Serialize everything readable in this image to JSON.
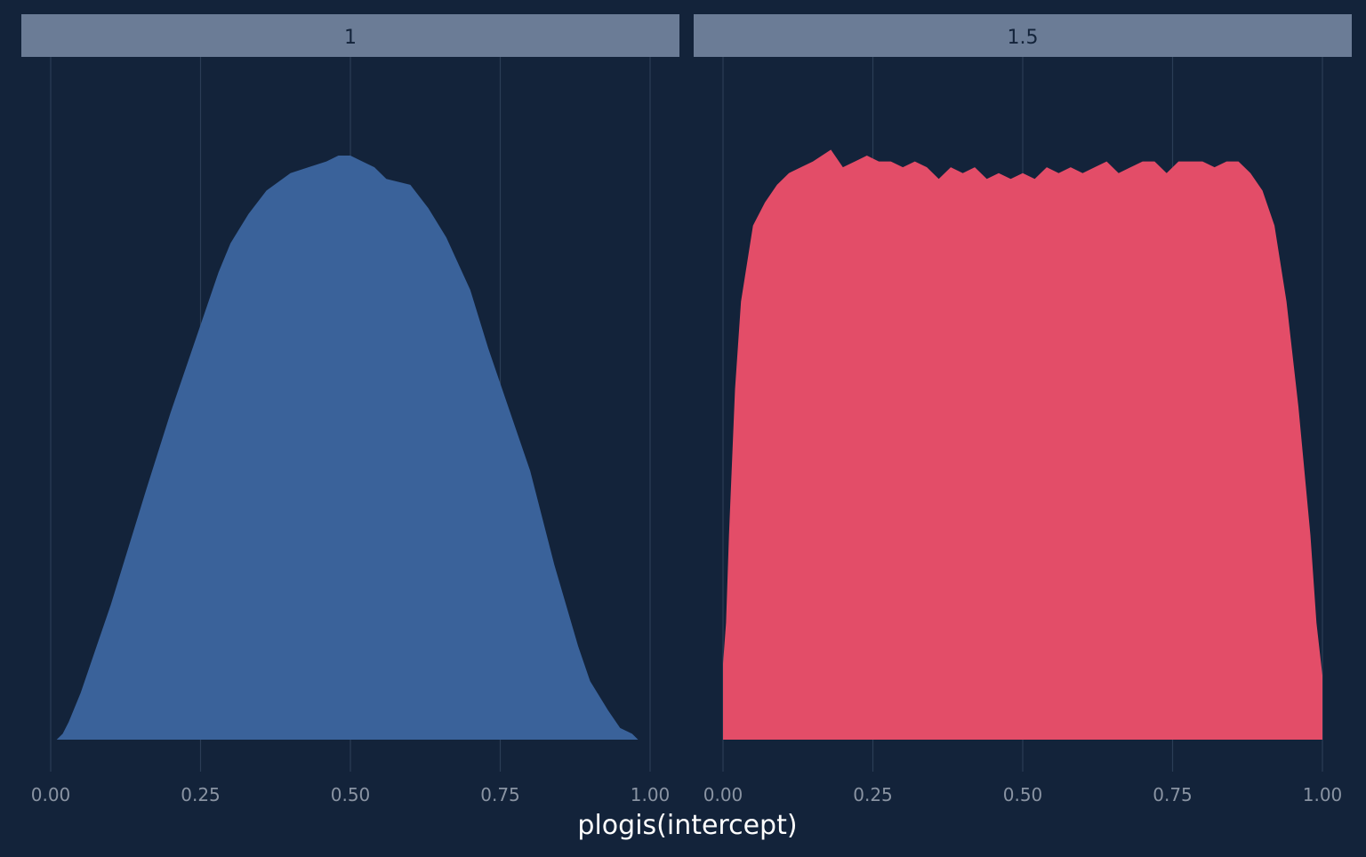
{
  "colors": {
    "background": "#13233a",
    "strip_fill": "#6b7c96",
    "strip_text": "#13233a",
    "grid": "#2b3d56",
    "tick_text": "#8a94a3",
    "axis_title": "#ffffff",
    "series_1": "#3a629a",
    "series_1_5": "#e34d68"
  },
  "chart_data": {
    "type": "area",
    "xlabel": "plogis(intercept)",
    "ylabel": "",
    "xlim": [
      0,
      1
    ],
    "x_ticks": [
      "0.00",
      "0.25",
      "0.50",
      "0.75",
      "1.00"
    ],
    "grid": "vertical only",
    "legend": "none",
    "facets": [
      {
        "label": "1",
        "color": "#3a629a",
        "x": [
          0.01,
          0.02,
          0.03,
          0.05,
          0.08,
          0.1,
          0.13,
          0.16,
          0.2,
          0.25,
          0.28,
          0.3,
          0.33,
          0.36,
          0.4,
          0.43,
          0.46,
          0.48,
          0.5,
          0.52,
          0.54,
          0.56,
          0.6,
          0.63,
          0.66,
          0.7,
          0.73,
          0.76,
          0.8,
          0.84,
          0.88,
          0.9,
          0.93,
          0.95,
          0.97,
          0.98,
          0.99
        ],
        "density": [
          0.0,
          0.01,
          0.03,
          0.08,
          0.17,
          0.23,
          0.33,
          0.43,
          0.56,
          0.71,
          0.8,
          0.85,
          0.9,
          0.94,
          0.97,
          0.98,
          0.99,
          1.0,
          1.0,
          0.99,
          0.98,
          0.96,
          0.95,
          0.91,
          0.86,
          0.77,
          0.67,
          0.58,
          0.46,
          0.3,
          0.16,
          0.1,
          0.05,
          0.02,
          0.01,
          0.0,
          0.0
        ]
      },
      {
        "label": "1.5",
        "color": "#e34d68",
        "x": [
          0.0,
          0.005,
          0.01,
          0.02,
          0.03,
          0.05,
          0.07,
          0.09,
          0.11,
          0.13,
          0.15,
          0.18,
          0.2,
          0.22,
          0.24,
          0.26,
          0.28,
          0.3,
          0.32,
          0.34,
          0.36,
          0.38,
          0.4,
          0.42,
          0.44,
          0.46,
          0.48,
          0.5,
          0.52,
          0.54,
          0.56,
          0.58,
          0.6,
          0.62,
          0.64,
          0.66,
          0.68,
          0.7,
          0.72,
          0.74,
          0.76,
          0.78,
          0.8,
          0.82,
          0.84,
          0.86,
          0.88,
          0.9,
          0.92,
          0.94,
          0.96,
          0.98,
          0.99,
          1.0
        ],
        "density": [
          0.13,
          0.2,
          0.35,
          0.6,
          0.75,
          0.88,
          0.92,
          0.95,
          0.97,
          0.98,
          0.99,
          1.01,
          0.98,
          0.99,
          1.0,
          0.99,
          0.99,
          0.98,
          0.99,
          0.98,
          0.96,
          0.98,
          0.97,
          0.98,
          0.96,
          0.97,
          0.96,
          0.97,
          0.96,
          0.98,
          0.97,
          0.98,
          0.97,
          0.98,
          0.99,
          0.97,
          0.98,
          0.99,
          0.99,
          0.97,
          0.99,
          0.99,
          0.99,
          0.98,
          0.99,
          0.99,
          0.97,
          0.94,
          0.88,
          0.75,
          0.57,
          0.35,
          0.2,
          0.11
        ]
      }
    ]
  }
}
